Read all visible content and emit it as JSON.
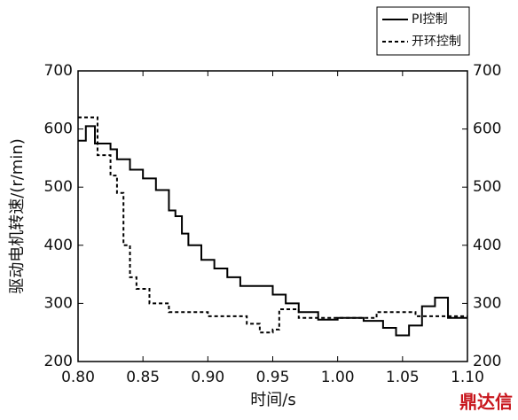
{
  "chart_data": {
    "type": "line",
    "xlabel": "时间/s",
    "ylabel": "驱动电机转速/(r/min)",
    "xlim": [
      0.8,
      1.1
    ],
    "xticks": [
      {
        "value": 0.8,
        "label": "0.80"
      },
      {
        "value": 0.85,
        "label": "0.85"
      },
      {
        "value": 0.9,
        "label": "0.90"
      },
      {
        "value": 0.95,
        "label": "0.95"
      },
      {
        "value": 1.0,
        "label": "1.00"
      },
      {
        "value": 1.05,
        "label": "1.05"
      },
      {
        "value": 1.1,
        "label": "1.10"
      }
    ],
    "ylim": [
      200,
      700
    ],
    "yticks": [
      200,
      300,
      400,
      500,
      600,
      700
    ],
    "y2lim": [
      200,
      700
    ],
    "y2ticks": [
      200,
      300,
      400,
      500,
      600,
      700
    ],
    "legend_position": "top-right",
    "watermark": "鼎达信",
    "series": [
      {
        "name": "PI控制",
        "color": "#000000",
        "style": "solid",
        "x": [
          0.8,
          0.806,
          0.806,
          0.813,
          0.813,
          0.825,
          0.825,
          0.83,
          0.83,
          0.84,
          0.84,
          0.85,
          0.85,
          0.86,
          0.86,
          0.87,
          0.87,
          0.875,
          0.875,
          0.88,
          0.88,
          0.885,
          0.885,
          0.895,
          0.895,
          0.905,
          0.905,
          0.915,
          0.915,
          0.925,
          0.925,
          0.95,
          0.95,
          0.96,
          0.96,
          0.97,
          0.97,
          0.985,
          0.985,
          1.0,
          1.0,
          1.02,
          1.02,
          1.035,
          1.035,
          1.045,
          1.045,
          1.055,
          1.055,
          1.065,
          1.065,
          1.075,
          1.075,
          1.085,
          1.085,
          1.1
        ],
        "values": [
          580,
          580,
          605,
          605,
          575,
          575,
          565,
          565,
          548,
          548,
          530,
          530,
          515,
          515,
          495,
          495,
          460,
          460,
          450,
          450,
          420,
          420,
          400,
          400,
          375,
          375,
          360,
          360,
          345,
          345,
          330,
          330,
          315,
          315,
          300,
          300,
          285,
          285,
          272,
          272,
          275,
          275,
          270,
          270,
          258,
          258,
          245,
          245,
          262,
          262,
          295,
          295,
          310,
          310,
          275,
          275
        ]
      },
      {
        "name": "开环控制",
        "color": "#000000",
        "style": "dashed",
        "x": [
          0.8,
          0.815,
          0.815,
          0.825,
          0.825,
          0.83,
          0.83,
          0.835,
          0.835,
          0.84,
          0.84,
          0.845,
          0.845,
          0.855,
          0.855,
          0.87,
          0.87,
          0.9,
          0.9,
          0.93,
          0.93,
          0.94,
          0.94,
          0.95,
          0.95,
          0.955,
          0.955,
          0.97,
          0.97,
          1.03,
          1.03,
          1.06,
          1.06,
          1.1
        ],
        "values": [
          620,
          620,
          555,
          555,
          520,
          520,
          490,
          490,
          400,
          400,
          345,
          345,
          325,
          325,
          300,
          300,
          285,
          285,
          278,
          278,
          265,
          265,
          250,
          250,
          255,
          255,
          290,
          290,
          275,
          275,
          285,
          285,
          278,
          278
        ]
      }
    ]
  }
}
